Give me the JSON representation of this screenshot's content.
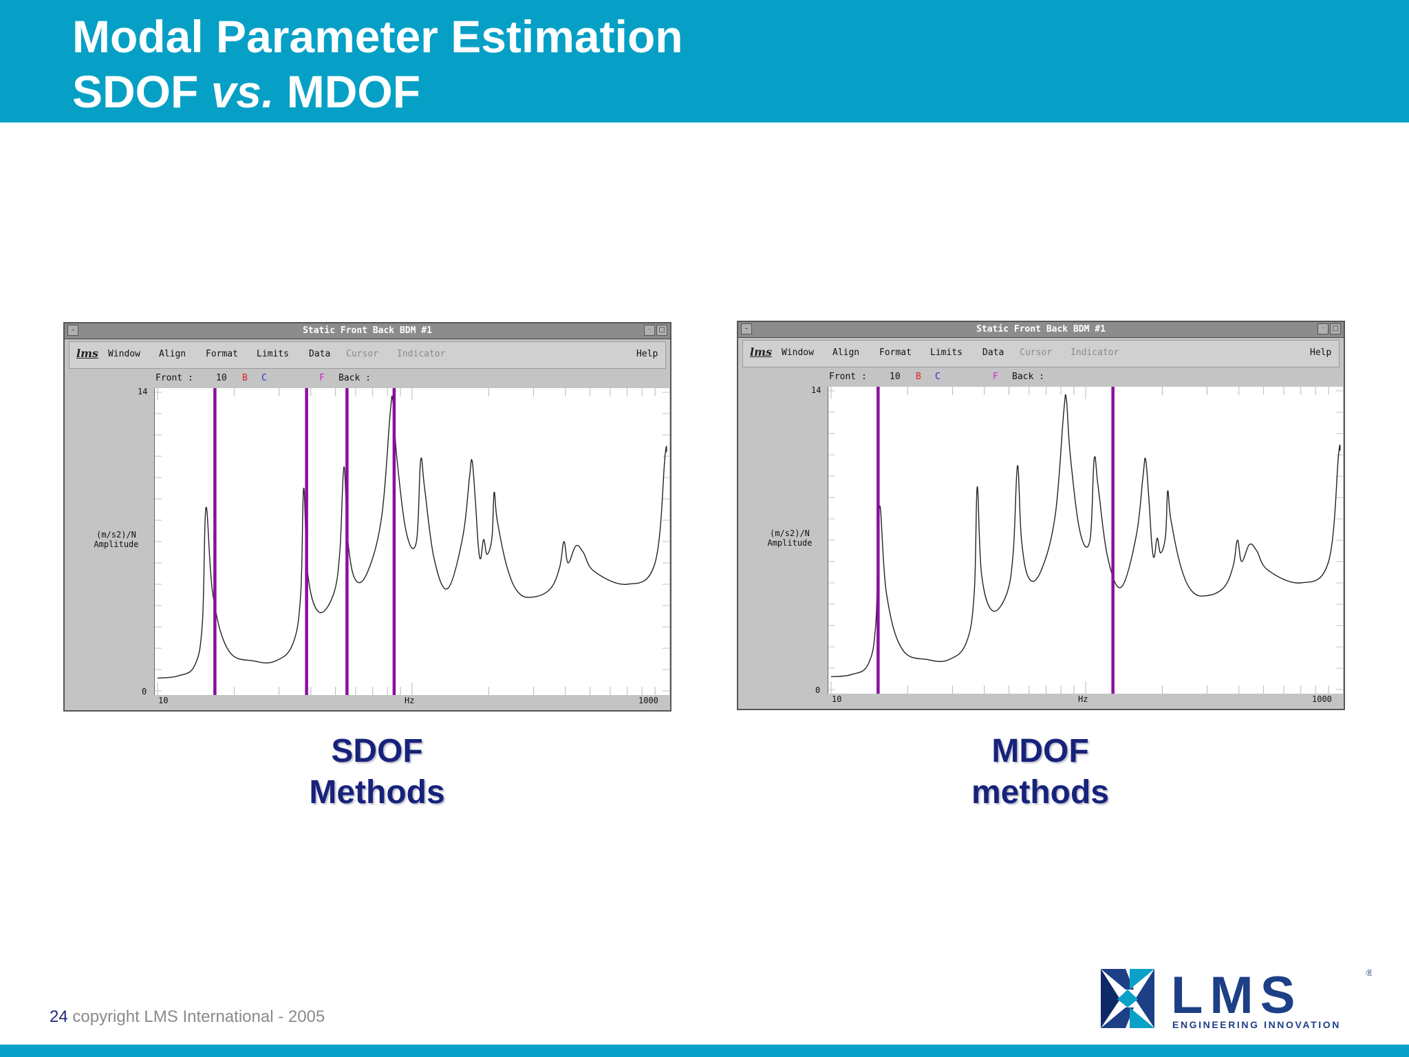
{
  "slide": {
    "title_line1": "Modal Parameter Estimation",
    "title_line2_a": "SDOF ",
    "title_line2_b": "vs.",
    "title_line2_c": " MDOF",
    "footer_number": "24",
    "footer_text": " copyright LMS International - 2005",
    "logo_text": "LMS",
    "logo_tagline": "ENGINEERING INNOVATION",
    "colors": {
      "header": "#06a0c6",
      "caption": "#17237a",
      "marker": "#8b0fa0"
    }
  },
  "windows": [
    {
      "title": "Static Front Back BDM #1",
      "logo": "lms",
      "menu": [
        "Window",
        "Align",
        "Format",
        "Limits",
        "Data",
        "Cursor",
        "Indicator"
      ],
      "menu_dim": [
        false,
        false,
        false,
        false,
        false,
        true,
        true
      ],
      "help": "Help",
      "front_label": "Front :",
      "front_value": "10",
      "b": "B",
      "c": "C",
      "f": "F",
      "back_label": "Back :",
      "y_max": "14",
      "y_min": "0",
      "y_label_line1": "(m/s2)/N",
      "y_label_line2": "Amplitude",
      "x_min": "10",
      "x_unit": "Hz",
      "x_max": "1000",
      "caption_line1": "SDOF",
      "caption_line2": "Methods",
      "markers_hz": [
        16.8,
        38.5,
        55.5,
        85.0
      ]
    },
    {
      "title": "Static Front Back BDM #1",
      "logo": "lms",
      "menu": [
        "Window",
        "Align",
        "Format",
        "Limits",
        "Data",
        "Cursor",
        "Indicator"
      ],
      "menu_dim": [
        false,
        false,
        false,
        false,
        false,
        true,
        true
      ],
      "help": "Help",
      "front_label": "Front :",
      "front_value": "10",
      "b": "B",
      "c": "C",
      "f": "F",
      "back_label": "Back :",
      "y_max": "14",
      "y_min": "0",
      "y_label_line1": "(m/s2)/N",
      "y_label_line2": "Amplitude",
      "x_min": "10",
      "x_unit": "Hz",
      "x_max": "1000",
      "caption_line1": "MDOF",
      "caption_line2": "methods",
      "markers_hz": [
        15.3,
        128.0
      ]
    }
  ],
  "chart_data": {
    "type": "line",
    "xscale": "log",
    "xlim": [
      10,
      1000
    ],
    "ylim": [
      0,
      14
    ],
    "xlabel": "Hz",
    "ylabel": "(m/s2)/N Amplitude",
    "peaks_hz": [
      15.5,
      37.5,
      54.0,
      84.0,
      108.0,
      172.0,
      210.0,
      440.0
    ],
    "series": [
      {
        "x": [
          10,
          12,
          14,
          15,
          15.5,
          16.5,
          19,
          24,
          29,
          34,
          36.5,
          37.5,
          39,
          43,
          49,
          52,
          54,
          56,
          60,
          67,
          76,
          82,
          84,
          87,
          95,
          104,
          108,
          112,
          122,
          138,
          158,
          168,
          172,
          177,
          182,
          186,
          191,
          197,
          206,
          210,
          216,
          236,
          262,
          300,
          350,
          380,
          395,
          410,
          440,
          470,
          520,
          700,
          900,
          985,
          1000
        ],
        "y": [
          0.6,
          0.7,
          1.2,
          3.2,
          8.6,
          4.5,
          1.9,
          1.4,
          1.4,
          2.2,
          4.5,
          9.5,
          5.4,
          3.7,
          4.5,
          6.5,
          10.5,
          7.0,
          5.2,
          5.6,
          8.2,
          13.0,
          13.6,
          11.0,
          7.4,
          7.0,
          10.8,
          9.5,
          6.2,
          4.8,
          7.2,
          10.0,
          10.8,
          9.0,
          6.8,
          6.2,
          7.1,
          6.4,
          7.2,
          9.3,
          8.0,
          5.8,
          4.6,
          4.4,
          4.8,
          5.8,
          7.0,
          6.0,
          6.8,
          6.5,
          5.6,
          5.0,
          6.0,
          11.0,
          11.2
        ]
      }
    ]
  }
}
